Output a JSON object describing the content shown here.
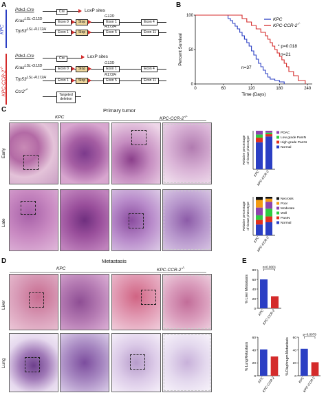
{
  "panels": {
    "A": "A",
    "B": "B",
    "C": "C",
    "D": "D",
    "E": "E"
  },
  "panelA": {
    "kpc_label": "KPC",
    "ccr_label": "KPC-CCR-2",
    "ccr_label_sup": "-/-",
    "loxp_label": "LoxP sites",
    "gene_rows": {
      "pdx1": "Pdx1-Cre",
      "kras": "Kras",
      "kras_sup": "LSL-G12D",
      "trp53": "Trp53",
      "trp53_sup": "LSL-R172H",
      "ccr2": "Ccr2",
      "ccr2_sup": "-/-"
    },
    "boxes": {
      "cre": "Cre",
      "exon0": "Exon 0",
      "stop": "Stop",
      "exon1": "Exon 1",
      "exon4": "Exon 4",
      "exon5": "Exon 5",
      "exon11": "Exon 11",
      "g12d": "G12D",
      "r172h": "R172H",
      "targeted_1": "Targeted",
      "targeted_2": "deletion"
    }
  },
  "chart_data": {
    "type": "line",
    "xlabel": "Time (Days)",
    "ylabel": "Percent Survival",
    "xlim": [
      0,
      250
    ],
    "ylim": [
      0,
      100
    ],
    "xticks": [
      0,
      60,
      120,
      180,
      240
    ],
    "yticks": [
      0,
      50,
      100
    ],
    "series": [
      {
        "name": "KPC",
        "color": "#2b3fc4",
        "x": [
          0,
          60,
          70,
          75,
          80,
          85,
          90,
          95,
          100,
          105,
          110,
          115,
          120,
          125,
          130,
          135,
          140,
          145,
          150,
          155,
          160,
          170,
          180,
          190
        ],
        "y": [
          100,
          100,
          95,
          92,
          88,
          84,
          80,
          75,
          70,
          65,
          60,
          55,
          48,
          42,
          36,
          30,
          25,
          20,
          15,
          10,
          7,
          5,
          3,
          0
        ]
      },
      {
        "name": "KPC-CCR-2",
        "color": "#d42b2b",
        "x": [
          0,
          90,
          100,
          110,
          120,
          130,
          140,
          150,
          155,
          160,
          165,
          170,
          175,
          180,
          185,
          190,
          195,
          200,
          210,
          220,
          235
        ],
        "y": [
          100,
          100,
          95,
          90,
          85,
          80,
          75,
          70,
          65,
          60,
          55,
          50,
          45,
          40,
          35,
          30,
          25,
          18,
          12,
          5,
          0
        ]
      }
    ],
    "legend": {
      "kpc": "KPC",
      "ccr": "KPC-CCR-2",
      "ccr_sup": "-/-"
    },
    "annotations": {
      "pval": "* p=0.018",
      "n21": "n=21",
      "n37": "n=37"
    }
  },
  "panelC": {
    "title": "Primary tumor",
    "col_kpc": "KPC",
    "col_ccr": "KPC-CCR-2",
    "col_ccr_sup": "-/-",
    "row_early": "Early",
    "row_late": "Late",
    "early_chart": {
      "ylabel_1": "Relative percentage",
      "ylabel_2": "of tissue phenotype",
      "categories": [
        "KPC",
        "KPC-CCR-2"
      ],
      "legend": [
        "PDAC",
        "Low grade PanIN",
        "High grade PanIN",
        "Normal"
      ],
      "colors": [
        "#8e44ad",
        "#2ecc40",
        "#e0301e",
        "#2b3fc4"
      ],
      "values": [
        [
          10,
          8,
          12,
          70
        ],
        [
          5,
          4,
          6,
          85
        ]
      ]
    },
    "late_chart": {
      "ylabel_1": "Relative percentage",
      "ylabel_2": "of tissue phenotype",
      "categories": [
        "KPC",
        "KPC-CCR-2"
      ],
      "legend": [
        "Necrosis",
        "Poor",
        "Moderate",
        "Well",
        "PanIN",
        "Normal"
      ],
      "colors": [
        "#111111",
        "#f39c12",
        "#8e44ad",
        "#2ecc40",
        "#e0301e",
        "#2b3fc4"
      ],
      "values": [
        [
          8,
          20,
          20,
          12,
          12,
          28
        ],
        [
          5,
          8,
          18,
          20,
          15,
          34
        ]
      ]
    }
  },
  "panelD": {
    "title": "Metastasis",
    "col_kpc": "KPC",
    "col_ccr": "KPC-CCR-2",
    "col_ccr_sup": "-/-",
    "row_liver": "Liver",
    "row_lung": "Lung"
  },
  "panelE": {
    "liver": {
      "ylabel": "% Liver Metastasis",
      "pval": "p<0.0001",
      "categories": [
        "KPC",
        "KPC-CCR-2"
      ],
      "values": [
        60,
        25
      ],
      "ylim": [
        0,
        80
      ],
      "yticks": [
        0,
        20,
        40,
        60,
        80
      ],
      "colors": [
        "#2b3fc4",
        "#d42b2b"
      ]
    },
    "lung": {
      "ylabel": "% Lung Metastasis",
      "categories": [
        "KPC",
        "KPC-CCR-2"
      ],
      "values": [
        41,
        30
      ],
      "ylim": [
        0,
        60
      ],
      "yticks": [
        0,
        20,
        40,
        60
      ],
      "colors": [
        "#2b3fc4",
        "#d42b2b"
      ]
    },
    "diaphragm": {
      "ylabel": "% Diaphragm Metastasis",
      "pval": "p=0.0079",
      "categories": [
        "KPC",
        "KPC-CCR-2"
      ],
      "values": [
        42,
        21
      ],
      "ylim": [
        0,
        60
      ],
      "yticks": [
        0,
        20,
        40,
        60
      ],
      "colors": [
        "#2b3fc4",
        "#d42b2b"
      ]
    }
  }
}
